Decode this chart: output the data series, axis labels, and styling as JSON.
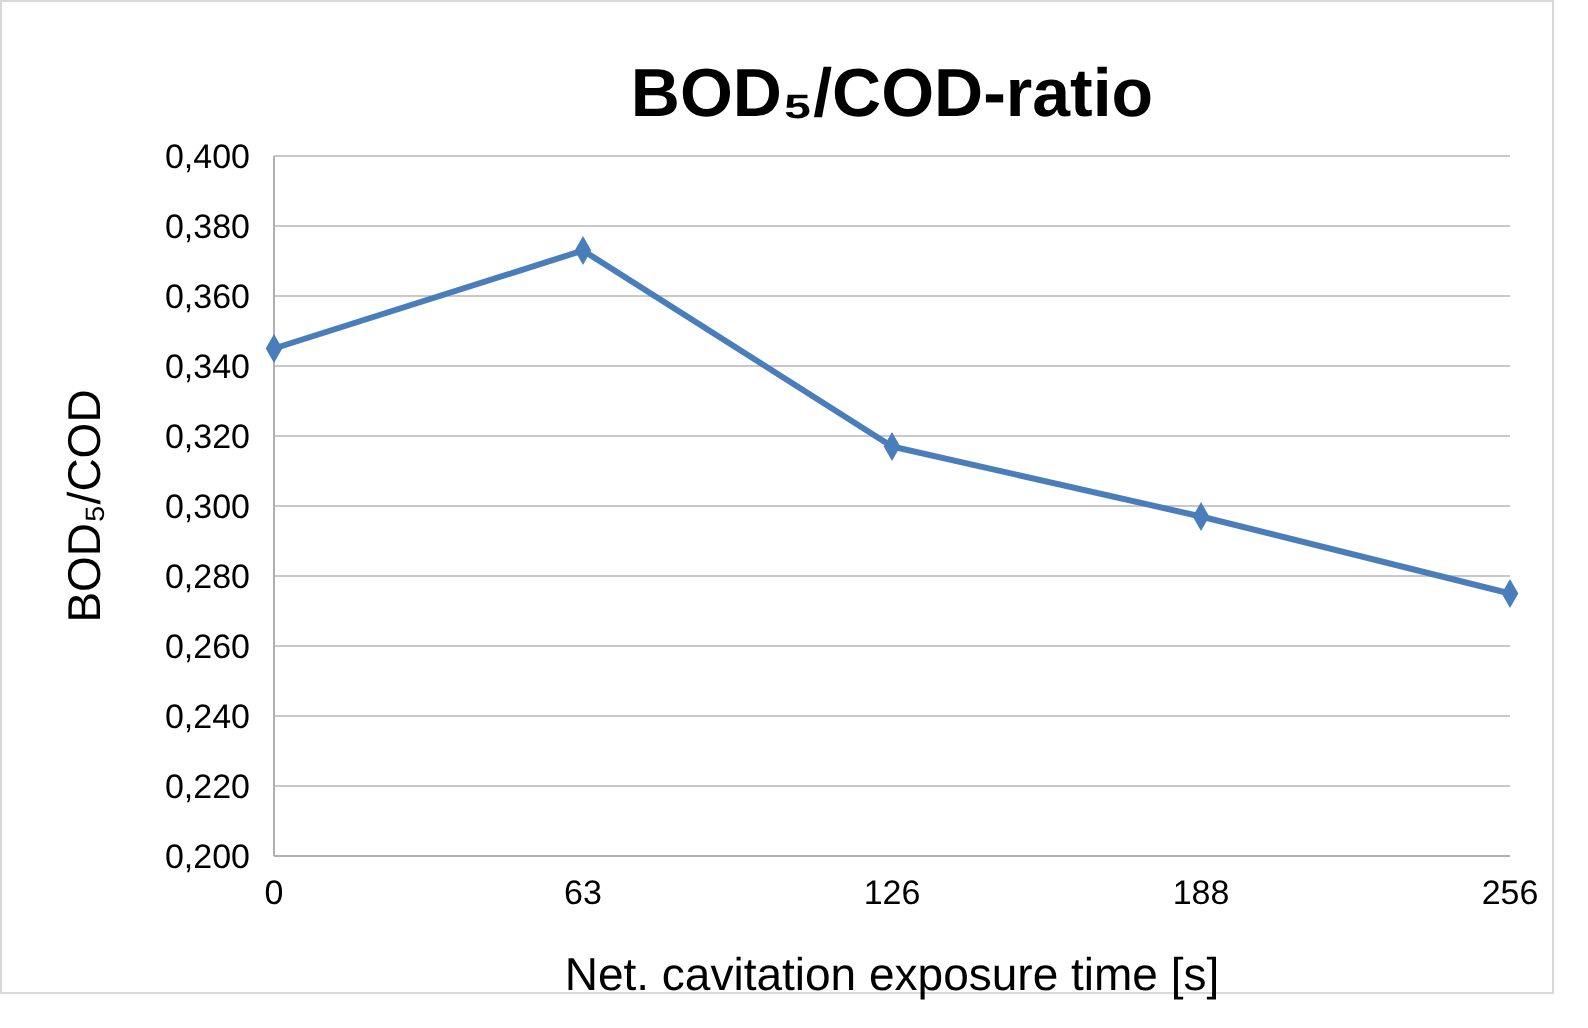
{
  "chart_data": {
    "type": "line",
    "title": "BOD₅/COD-ratio",
    "xlabel": "Net. cavitation exposure time [s]",
    "ylabel": "BOD₅/COD",
    "categories": [
      "0",
      "63",
      "126",
      "188",
      "256"
    ],
    "series": [
      {
        "color": "#4a7ebb",
        "values": [
          0.345,
          0.373,
          0.317,
          0.297,
          0.275
        ]
      }
    ],
    "ylim": [
      0.2,
      0.4
    ],
    "yticks": [
      {
        "value": 0.2,
        "label": "0,200"
      },
      {
        "value": 0.22,
        "label": "0,220"
      },
      {
        "value": 0.24,
        "label": "0,240"
      },
      {
        "value": 0.26,
        "label": "0,260"
      },
      {
        "value": 0.28,
        "label": "0,280"
      },
      {
        "value": 0.3,
        "label": "0,300"
      },
      {
        "value": 0.32,
        "label": "0,320"
      },
      {
        "value": 0.34,
        "label": "0,340"
      },
      {
        "value": 0.36,
        "label": "0,360"
      },
      {
        "value": 0.38,
        "label": "0,380"
      },
      {
        "value": 0.4,
        "label": "0,400"
      }
    ],
    "grid": "y",
    "marker": "diamond",
    "line_style": "solid"
  }
}
